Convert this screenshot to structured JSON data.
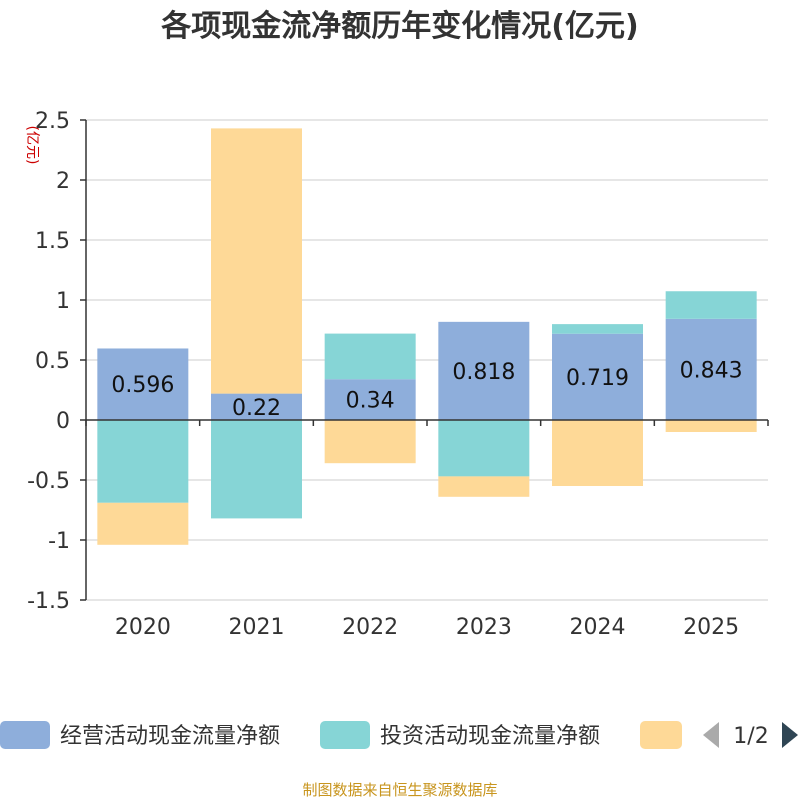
{
  "chart_data": {
    "type": "bar",
    "stacked": true,
    "title": "各项现金流净额历年变化情况(亿元)",
    "ylabel": "(亿元)",
    "categories": [
      "2020",
      "2021",
      "2022",
      "2023",
      "2024",
      "2025"
    ],
    "ylim": [
      -1.5,
      2.5
    ],
    "yticks": [
      2.5,
      2,
      1.5,
      1,
      0.5,
      0,
      -0.5,
      -1,
      -1.5
    ],
    "ytick_labels": [
      "2.5",
      "2",
      "1.5",
      "1",
      "0.5",
      "0",
      "-0.5",
      "-1",
      "-1.5"
    ],
    "grid": true,
    "series": [
      {
        "name": "经营活动现金流量净额",
        "color": "#8eaedb",
        "values": [
          0.596,
          0.22,
          0.34,
          0.818,
          0.719,
          0.843
        ],
        "labels": [
          "0.596",
          "0.22",
          "0.34",
          "0.818",
          "0.719",
          "0.843"
        ]
      },
      {
        "name": "投资活动现金流量净额",
        "color": "#86d5d6",
        "values": [
          -0.69,
          -0.82,
          0.38,
          -0.47,
          0.08,
          0.23
        ]
      },
      {
        "name": "",
        "color": "#fed997",
        "values": [
          -0.35,
          2.21,
          -0.36,
          -0.17,
          -0.55,
          -0.1
        ]
      }
    ],
    "legend": {
      "items": [
        "经营活动现金流量净额",
        "投资活动现金流量净额",
        ""
      ],
      "page": "1/2",
      "placement": "bottom"
    },
    "source": "制图数据来自恒生聚源数据库"
  }
}
